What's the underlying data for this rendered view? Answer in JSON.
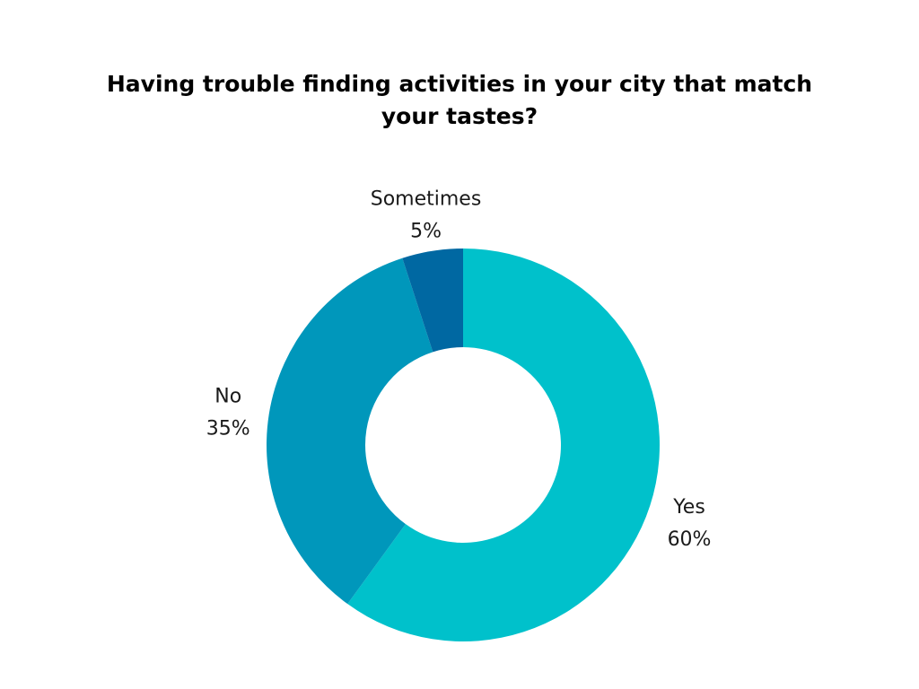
{
  "chart_data": {
    "type": "pie",
    "variant": "donut",
    "title": "Having trouble finding activities in your city that match your tastes?",
    "categories": [
      "Yes",
      "No",
      "Sometimes"
    ],
    "values": [
      60,
      35,
      5
    ],
    "value_labels": [
      "60%",
      "35%",
      "5%"
    ],
    "colors": [
      "#00c1cb",
      "#0097bb",
      "#0068a2"
    ],
    "start": "12 o'clock",
    "direction": "clockwise",
    "legend": "none (labels beside slices)"
  }
}
